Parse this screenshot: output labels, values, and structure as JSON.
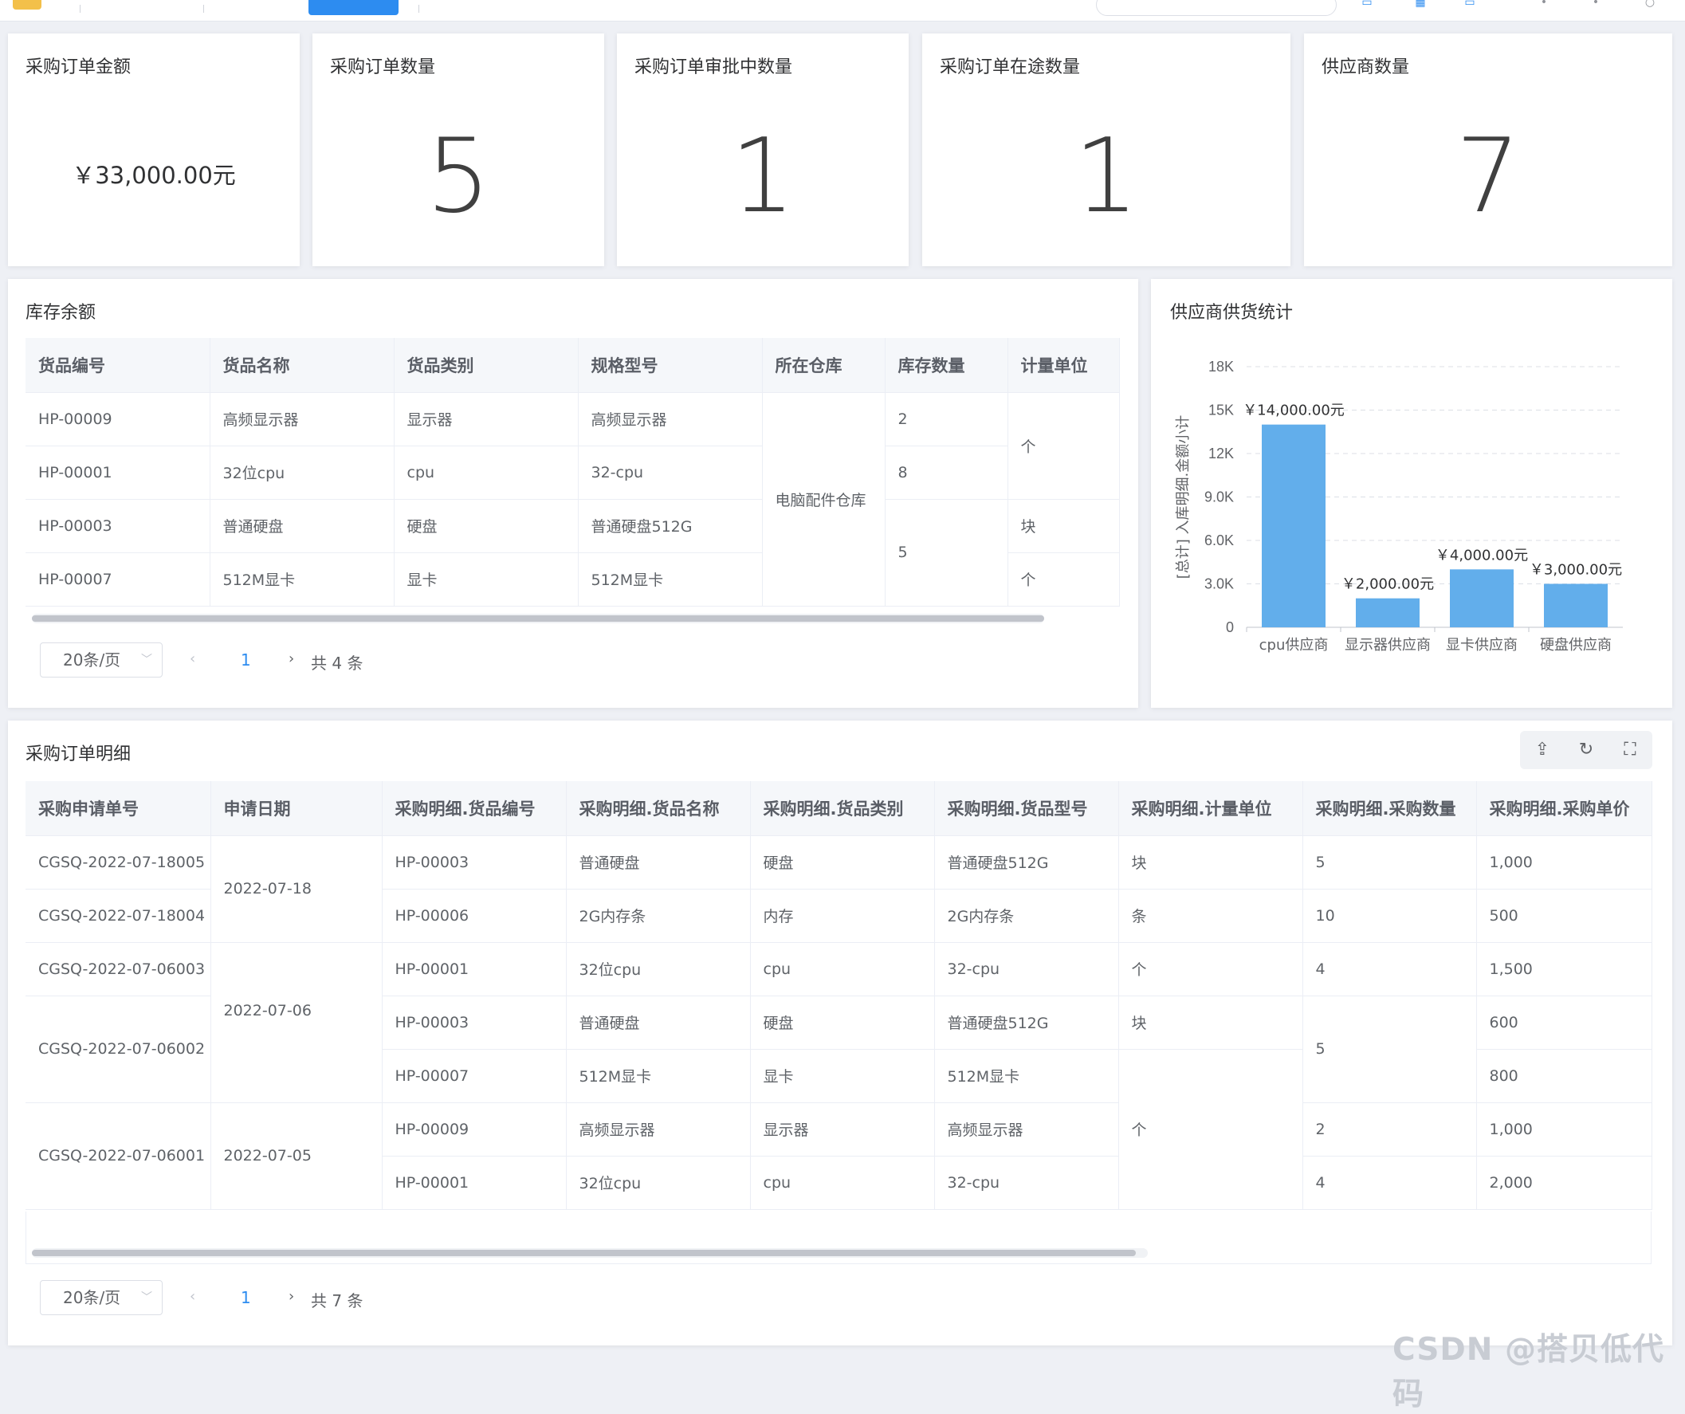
{
  "stats": [
    {
      "label": "采购订单金额",
      "value": "￥33,000.00元"
    },
    {
      "label": "采购订单数量",
      "value": "5"
    },
    {
      "label": "采购订单审批中数量",
      "value": "1"
    },
    {
      "label": "采购订单在途数量",
      "value": "1"
    },
    {
      "label": "供应商数量",
      "value": "7"
    }
  ],
  "inventory": {
    "title": "库存余额",
    "columns": [
      "货品编号",
      "货品名称",
      "货品类别",
      "规格型号",
      "所在仓库",
      "库存数量",
      "计量单位"
    ],
    "rows": [
      [
        "HP-00009",
        "高频显示器",
        "显示器",
        "高频显示器"
      ],
      [
        "HP-00001",
        "32位cpu",
        "cpu",
        "32-cpu"
      ],
      [
        "HP-00003",
        "普通硬盘",
        "硬盘",
        "普通硬盘512G"
      ],
      [
        "HP-00007",
        "512M显卡",
        "显卡",
        "512M显卡"
      ]
    ],
    "warehouse": "电脑配件仓库",
    "quantities": [
      "2",
      "8",
      "5"
    ],
    "units": [
      "个",
      "块",
      "个"
    ],
    "pager": {
      "size": "20条/页",
      "page": "1",
      "total": "共 4 条"
    }
  },
  "supplier_chart": {
    "title": "供应商供货统计"
  },
  "chart_data": {
    "type": "bar",
    "categories": [
      "cpu供应商",
      "显示器供应商",
      "显卡供应商",
      "硬盘供应商"
    ],
    "values": [
      14000,
      2000,
      4000,
      3000
    ],
    "data_labels": [
      "￥14,000.00元",
      "￥2,000.00元",
      "￥4,000.00元",
      "￥3,000.00元"
    ],
    "ylabel": "[总计] 入库明细.金额小计",
    "yticks": [
      "0",
      "3.0K",
      "6.0K",
      "9.0K",
      "12K",
      "15K",
      "18K"
    ],
    "ylim": [
      0,
      18000
    ],
    "grid": true,
    "color": "#62aeeb"
  },
  "orders": {
    "title": "采购订单明细",
    "columns": [
      "采购申请单号",
      "申请日期",
      "采购明细.货品编号",
      "采购明细.货品名称",
      "采购明细.货品类别",
      "采购明细.货品型号",
      "采购明细.计量单位",
      "采购明细.采购数量",
      "采购明细.采购单价"
    ],
    "order_nos": [
      "CGSQ-2022-07-18005",
      "CGSQ-2022-07-18004",
      "CGSQ-2022-07-06003",
      "CGSQ-2022-07-06002",
      "CGSQ-2022-07-06001"
    ],
    "dates": [
      "2022-07-18",
      "2022-07-06",
      "2022-07-05"
    ],
    "items": [
      [
        "HP-00003",
        "普通硬盘",
        "硬盘",
        "普通硬盘512G"
      ],
      [
        "HP-00006",
        "2G内存条",
        "内存",
        "2G内存条"
      ],
      [
        "HP-00001",
        "32位cpu",
        "cpu",
        "32-cpu"
      ],
      [
        "HP-00003",
        "普通硬盘",
        "硬盘",
        "普通硬盘512G"
      ],
      [
        "HP-00007",
        "512M显卡",
        "显卡",
        "512M显卡"
      ],
      [
        "HP-00009",
        "高频显示器",
        "显示器",
        "高频显示器"
      ],
      [
        "HP-00001",
        "32位cpu",
        "cpu",
        "32-cpu"
      ]
    ],
    "units": [
      "块",
      "条",
      "个",
      "块",
      "个"
    ],
    "quantities": [
      "5",
      "10",
      "4",
      "5",
      "2",
      "4"
    ],
    "prices": [
      "1,000",
      "500",
      "1,500",
      "600",
      "800",
      "1,000",
      "2,000"
    ],
    "pager": {
      "size": "20条/页",
      "page": "1",
      "total": "共 7 条"
    },
    "tools": {
      "export_icon": "upload-icon",
      "refresh_icon": "refresh-icon",
      "fullscreen_icon": "fullscreen-icon"
    }
  },
  "watermark": "CSDN @搭贝低代码"
}
